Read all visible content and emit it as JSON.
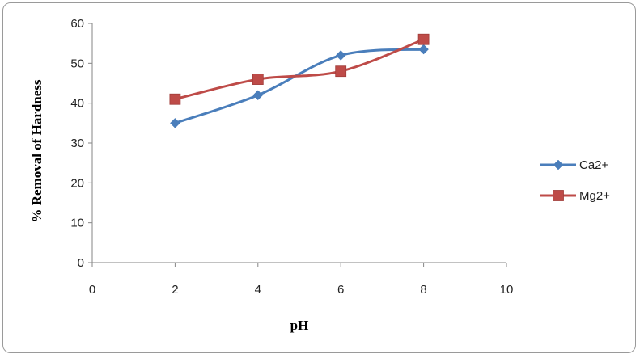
{
  "chart_data": {
    "type": "line",
    "title": "",
    "xlabel": "pH",
    "ylabel": "% Removal of Hardness",
    "xlim": [
      0,
      10
    ],
    "ylim": [
      0,
      60
    ],
    "x_ticks": [
      0,
      2,
      4,
      6,
      8,
      10
    ],
    "y_ticks": [
      0,
      10,
      20,
      30,
      40,
      50,
      60
    ],
    "grid": false,
    "smoothed": true,
    "legend_position": "right",
    "series": [
      {
        "name": "Ca2+",
        "color": "#4a7ebb",
        "marker": "diamond",
        "x": [
          2,
          4,
          6,
          8
        ],
        "y": [
          35,
          42,
          52,
          53.5
        ]
      },
      {
        "name": "Mg2+",
        "color": "#be4b48",
        "marker": "square",
        "x": [
          2,
          4,
          6,
          8
        ],
        "y": [
          41,
          46,
          48,
          56
        ]
      }
    ]
  }
}
